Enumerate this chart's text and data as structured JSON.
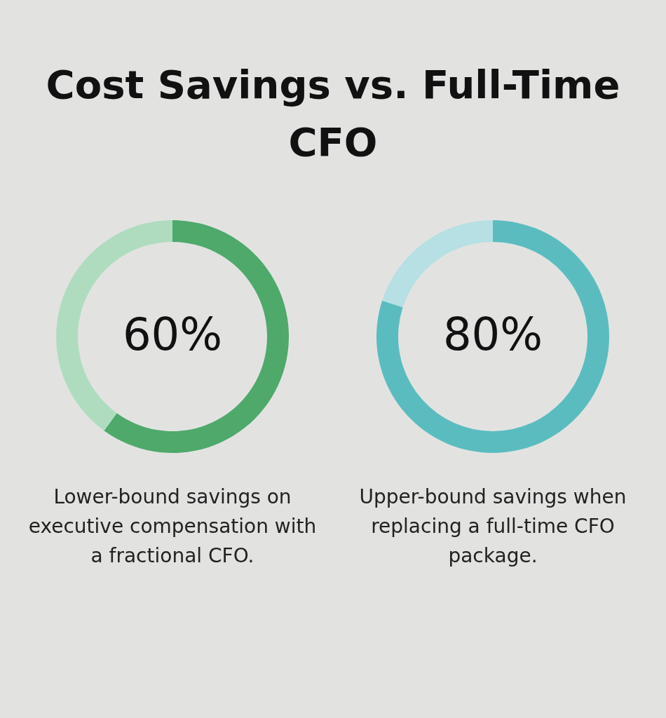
{
  "chart_data": [
    {
      "type": "donut",
      "title": "Cost Savings vs. Full-Time CFO",
      "categories": [
        null,
        null
      ],
      "values": [
        60,
        40
      ],
      "colors": [
        "#4ea96b",
        "#afdcbf"
      ],
      "value_labels": [
        "60%",
        null
      ],
      "annotations": [
        "Lower-bound savings on executive compensation with a fractional CFO."
      ]
    },
    {
      "type": "donut",
      "categories": [
        null,
        null
      ],
      "values": [
        80,
        20
      ],
      "colors": [
        "#5bbcc0",
        "#b6e0e3"
      ],
      "value_labels": [
        "80%",
        null
      ],
      "annotations": [
        "Upper-bound savings when replacing a full-time CFO package."
      ]
    }
  ]
}
